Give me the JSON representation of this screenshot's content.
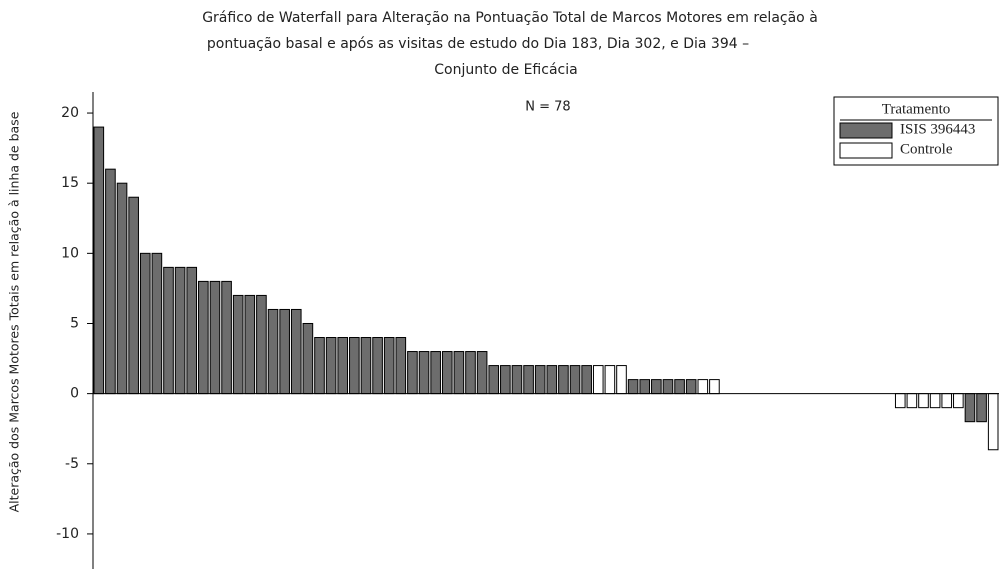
{
  "chart_data": {
    "type": "waterfall",
    "title": [
      "Gráfico de Waterfall para Alteração na Pontuação Total de Marcos Motores em relação à",
      "pontuação basal e após as visitas de estudo do Dia 183, Dia 302, e Dia 394 –",
      "Conjunto de Eficácia"
    ],
    "y_label": "Alteração dos Marcos Motores Totais em relação à linha de base",
    "annotation": "N = 78",
    "legend_title": "Tratamento",
    "legend_position": "upper right",
    "series": [
      {
        "name": "ISIS 396443",
        "color": "#6d6d6d",
        "values": [
          19,
          16,
          15,
          14,
          10,
          10,
          9,
          9,
          9,
          8,
          8,
          8,
          7,
          7,
          7,
          6,
          6,
          6,
          5,
          4,
          4,
          4,
          4,
          4,
          4,
          4,
          4,
          3,
          3,
          3,
          3,
          3,
          3,
          3,
          2,
          2,
          2,
          2,
          2,
          2,
          2,
          2,
          2,
          null,
          null,
          null,
          1,
          1,
          1,
          1,
          1,
          1,
          null,
          null,
          0,
          0,
          0,
          0,
          0,
          0,
          0,
          0,
          0,
          0,
          0,
          0,
          0,
          0,
          0,
          null,
          null,
          null,
          null,
          null,
          null,
          -2,
          -2,
          null
        ]
      },
      {
        "name": "Controle",
        "color": "#ffffff",
        "values": [
          null,
          null,
          null,
          null,
          null,
          null,
          null,
          null,
          null,
          null,
          null,
          null,
          null,
          null,
          null,
          null,
          null,
          null,
          null,
          null,
          null,
          null,
          null,
          null,
          null,
          null,
          null,
          null,
          null,
          null,
          null,
          null,
          null,
          null,
          null,
          null,
          null,
          null,
          null,
          null,
          null,
          null,
          null,
          2,
          2,
          2,
          null,
          null,
          null,
          null,
          null,
          null,
          1,
          1,
          null,
          null,
          null,
          null,
          null,
          null,
          null,
          null,
          null,
          null,
          null,
          null,
          null,
          null,
          null,
          -1,
          -1,
          -1,
          -1,
          -1,
          -1,
          null,
          null,
          -4
        ]
      }
    ],
    "ylim": [
      -12.5,
      21.5
    ],
    "yticks": [
      -10,
      -5,
      0,
      5,
      10,
      15,
      20
    ]
  }
}
